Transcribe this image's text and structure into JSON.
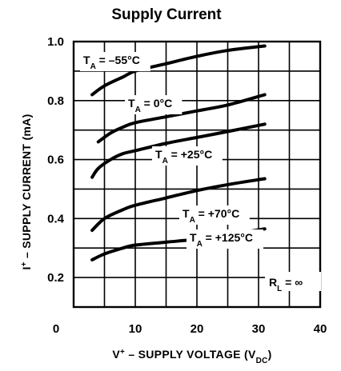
{
  "chart_data": {
    "type": "line",
    "title": "Supply Current",
    "xlabel": {
      "main": "V",
      "sup": "+",
      "rest": " – SUPPLY VOLTAGE (V",
      "sub": "DC",
      "end": ")"
    },
    "ylabel": {
      "main": "I",
      "sup": "+",
      "rest": " – SUPPLY CURRENT (mA)"
    },
    "xlim": [
      0,
      40
    ],
    "ylim": [
      0.1,
      1.0
    ],
    "x_ticks": [
      0,
      10,
      20,
      30,
      40
    ],
    "x_tick_labels": [
      "0",
      "10",
      "20",
      "30",
      "40"
    ],
    "y_ticks": [
      0.2,
      0.4,
      0.6,
      0.8,
      1.0
    ],
    "y_tick_labels": [
      "0.2",
      "0.4",
      "0.6",
      "0.8",
      "1.0"
    ],
    "x_minor_grid": 5,
    "y_minor_grid": 0.1,
    "grid": true,
    "series": [
      {
        "name": "-55",
        "label_main": "T",
        "label_sub": "A",
        "label_rest": " = –55°C",
        "x": [
          3,
          5,
          8,
          10,
          15,
          20,
          25,
          31
        ],
        "y": [
          0.82,
          0.85,
          0.88,
          0.9,
          0.925,
          0.95,
          0.97,
          0.985
        ]
      },
      {
        "name": "0",
        "label_main": "T",
        "label_sub": "A",
        "label_rest": " = 0°C",
        "x": [
          4,
          6,
          8,
          10,
          15,
          20,
          25,
          31
        ],
        "y": [
          0.66,
          0.69,
          0.71,
          0.725,
          0.745,
          0.765,
          0.785,
          0.82
        ]
      },
      {
        "name": "25",
        "label_main": "T",
        "label_sub": "A",
        "label_rest": " = +25°C",
        "x": [
          3,
          4,
          6,
          8,
          10,
          15,
          20,
          25,
          31
        ],
        "y": [
          0.54,
          0.57,
          0.6,
          0.62,
          0.63,
          0.655,
          0.675,
          0.695,
          0.72
        ]
      },
      {
        "name": "70",
        "label_main": "T",
        "label_sub": "A",
        "label_rest": " = +70°C",
        "x": [
          3,
          5,
          8,
          10,
          15,
          20,
          25,
          31
        ],
        "y": [
          0.36,
          0.4,
          0.43,
          0.445,
          0.47,
          0.495,
          0.515,
          0.535
        ]
      },
      {
        "name": "125",
        "label_main": "T",
        "label_sub": "A",
        "label_rest": " = +125°C",
        "x": [
          3,
          5,
          8,
          10,
          15,
          20,
          25,
          31
        ],
        "y": [
          0.26,
          0.28,
          0.3,
          0.31,
          0.32,
          0.33,
          0.345,
          0.365
        ]
      }
    ],
    "annotation": {
      "main": "R",
      "sub": "L",
      "rest": " = ∞"
    }
  }
}
